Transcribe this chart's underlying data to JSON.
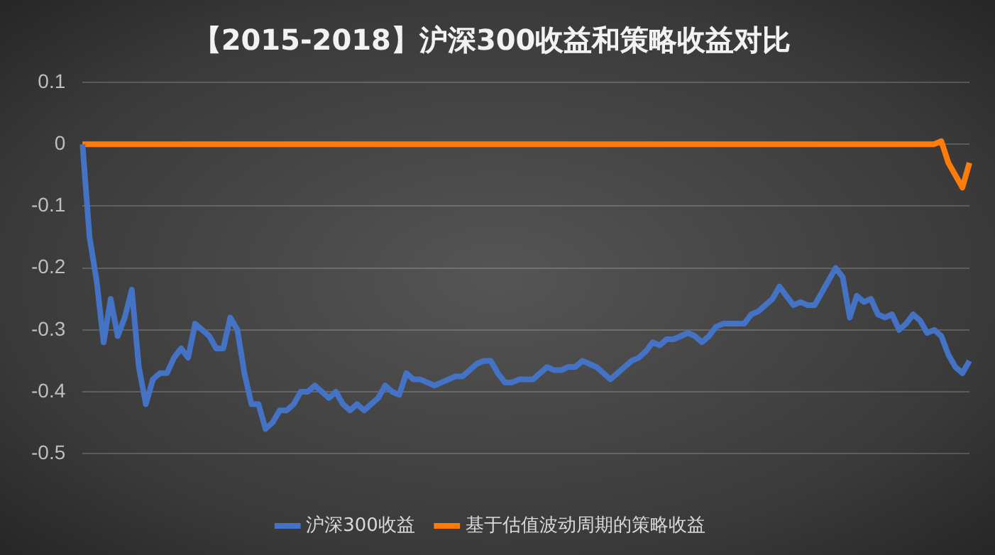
{
  "chart_data": {
    "type": "line",
    "title": "【2015-2018】沪深300收益和策略收益对比",
    "categories": [
      null,
      null,
      null,
      null,
      null,
      null,
      null,
      null,
      null,
      null,
      null,
      null,
      null,
      null,
      null,
      null,
      null,
      null,
      null,
      null,
      null,
      null,
      null,
      null,
      null,
      null,
      null,
      null,
      null,
      null,
      null,
      null,
      null,
      null,
      null,
      null,
      null,
      null,
      null,
      null,
      null,
      null,
      null,
      null,
      null,
      null,
      null,
      null,
      null,
      null,
      null,
      null,
      null,
      null,
      null,
      null,
      null,
      null,
      null,
      null,
      null,
      null,
      null,
      null,
      null,
      null,
      null,
      null,
      null,
      null,
      null,
      null,
      null,
      null,
      null,
      null,
      null,
      null,
      null,
      null,
      null,
      null,
      null,
      null,
      null,
      null,
      null,
      null,
      null,
      null,
      null,
      null,
      null,
      null,
      null,
      null,
      null,
      null,
      null,
      null,
      null,
      null,
      null,
      null,
      null,
      null,
      null,
      null,
      null,
      null,
      null,
      null,
      null,
      null,
      null,
      null,
      null,
      null,
      null,
      null,
      null,
      null,
      null,
      null,
      null,
      null,
      null
    ],
    "series": [
      {
        "name": "沪深300收益",
        "color": "#4472c4",
        "values": [
          0,
          -0.15,
          -0.22,
          -0.32,
          -0.25,
          -0.31,
          -0.28,
          -0.235,
          -0.36,
          -0.42,
          -0.38,
          -0.37,
          -0.37,
          -0.345,
          -0.33,
          -0.345,
          -0.29,
          -0.3,
          -0.31,
          -0.33,
          -0.33,
          -0.28,
          -0.3,
          -0.37,
          -0.42,
          -0.42,
          -0.46,
          -0.45,
          -0.43,
          -0.43,
          -0.42,
          -0.4,
          -0.4,
          -0.39,
          -0.4,
          -0.41,
          -0.4,
          -0.42,
          -0.43,
          -0.42,
          -0.43,
          -0.42,
          -0.41,
          -0.39,
          -0.4,
          -0.405,
          -0.37,
          -0.38,
          -0.38,
          -0.385,
          -0.39,
          -0.385,
          -0.38,
          -0.375,
          -0.375,
          -0.365,
          -0.355,
          -0.35,
          -0.35,
          -0.37,
          -0.385,
          -0.385,
          -0.38,
          -0.38,
          -0.38,
          -0.37,
          -0.36,
          -0.365,
          -0.365,
          -0.36,
          -0.36,
          -0.35,
          -0.355,
          -0.36,
          -0.37,
          -0.38,
          -0.37,
          -0.36,
          -0.35,
          -0.345,
          -0.335,
          -0.32,
          -0.325,
          -0.315,
          -0.315,
          -0.31,
          -0.305,
          -0.31,
          -0.32,
          -0.31,
          -0.295,
          -0.29,
          -0.29,
          -0.29,
          -0.29,
          -0.275,
          -0.27,
          -0.26,
          -0.25,
          -0.23,
          -0.245,
          -0.26,
          -0.255,
          -0.26,
          -0.26,
          -0.24,
          -0.22,
          -0.2,
          -0.215,
          -0.28,
          -0.245,
          -0.255,
          -0.25,
          -0.275,
          -0.28,
          -0.275,
          -0.3,
          -0.29,
          -0.275,
          -0.285,
          -0.305,
          -0.3,
          -0.31,
          -0.34,
          -0.36,
          -0.37,
          -0.35
        ]
      },
      {
        "name": "基于估值波动周期的策略收益",
        "color": "#ff7c0a",
        "values": [
          0,
          0,
          0,
          0,
          0,
          0,
          0,
          0,
          0,
          0,
          0,
          0,
          0,
          0,
          0,
          0,
          0,
          0,
          0,
          0,
          0,
          0,
          0,
          0,
          0,
          0,
          0,
          0,
          0,
          0,
          0,
          0,
          0,
          0,
          0,
          0,
          0,
          0,
          0,
          0,
          0,
          0,
          0,
          0,
          0,
          0,
          0,
          0,
          0,
          0,
          0,
          0,
          0,
          0,
          0,
          0,
          0,
          0,
          0,
          0,
          0,
          0,
          0,
          0,
          0,
          0,
          0,
          0,
          0,
          0,
          0,
          0,
          0,
          0,
          0,
          0,
          0,
          0,
          0,
          0,
          0,
          0,
          0,
          0,
          0,
          0,
          0,
          0,
          0,
          0,
          0,
          0,
          0,
          0,
          0,
          0,
          0,
          0,
          0,
          0,
          0,
          0,
          0,
          0,
          0,
          0,
          0,
          0,
          0,
          0,
          0,
          0,
          0,
          0,
          0,
          0,
          0,
          0,
          0,
          0,
          0,
          0,
          0.005,
          -0.03,
          -0.05,
          -0.07,
          -0.03
        ]
      }
    ],
    "ylim": [
      -0.5,
      0.1
    ],
    "yticks": [
      -0.5,
      -0.4,
      -0.3,
      -0.2,
      -0.1,
      0,
      0.1
    ],
    "grid": "y",
    "legend": "bottom",
    "marker": "none",
    "line_style": "solid"
  }
}
